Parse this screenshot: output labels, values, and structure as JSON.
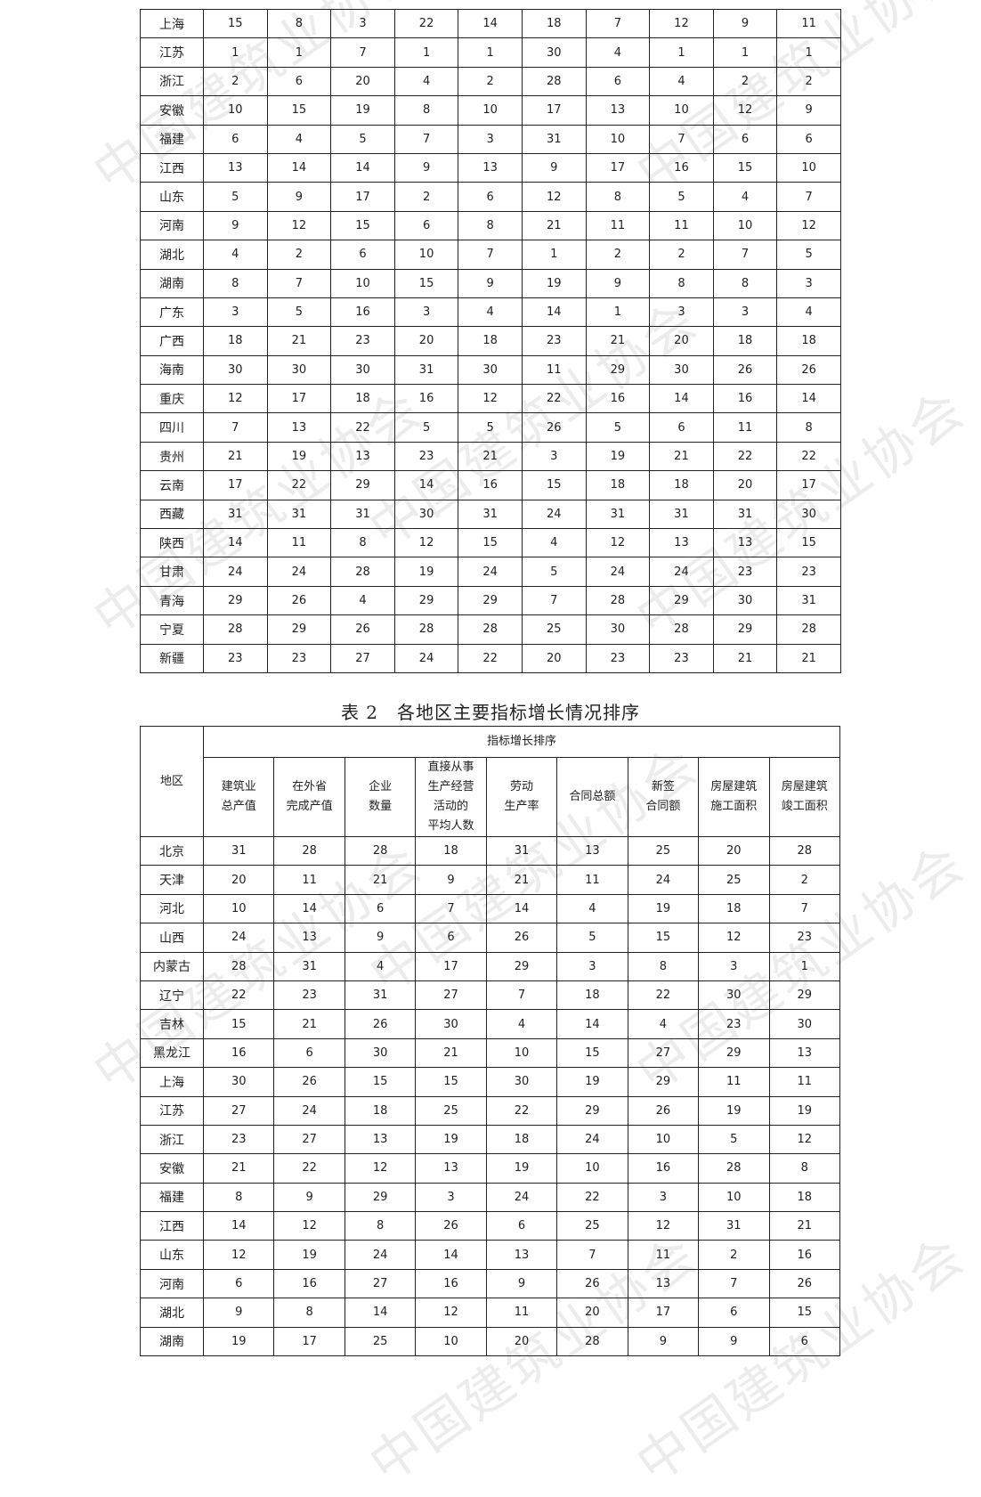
{
  "watermark": "中国建筑业协会",
  "table1": {
    "rows": [
      {
        "region": "上海",
        "values": [
          15,
          8,
          3,
          22,
          14,
          18,
          7,
          12,
          9,
          11
        ]
      },
      {
        "region": "江苏",
        "values": [
          1,
          1,
          7,
          1,
          1,
          30,
          4,
          1,
          1,
          1
        ]
      },
      {
        "region": "浙江",
        "values": [
          2,
          6,
          20,
          4,
          2,
          28,
          6,
          4,
          2,
          2
        ]
      },
      {
        "region": "安徽",
        "values": [
          10,
          15,
          19,
          8,
          10,
          17,
          13,
          10,
          12,
          9
        ]
      },
      {
        "region": "福建",
        "values": [
          6,
          4,
          5,
          7,
          3,
          31,
          10,
          7,
          6,
          6
        ]
      },
      {
        "region": "江西",
        "values": [
          13,
          14,
          14,
          9,
          13,
          9,
          17,
          16,
          15,
          10
        ]
      },
      {
        "region": "山东",
        "values": [
          5,
          9,
          17,
          2,
          6,
          12,
          8,
          5,
          4,
          7
        ]
      },
      {
        "region": "河南",
        "values": [
          9,
          12,
          15,
          6,
          8,
          21,
          11,
          11,
          10,
          12
        ]
      },
      {
        "region": "湖北",
        "values": [
          4,
          2,
          6,
          10,
          7,
          1,
          2,
          2,
          7,
          5
        ]
      },
      {
        "region": "湖南",
        "values": [
          8,
          7,
          10,
          15,
          9,
          19,
          9,
          8,
          8,
          3
        ]
      },
      {
        "region": "广东",
        "values": [
          3,
          5,
          16,
          3,
          4,
          14,
          1,
          3,
          3,
          4
        ]
      },
      {
        "region": "广西",
        "values": [
          18,
          21,
          23,
          20,
          18,
          23,
          21,
          20,
          18,
          18
        ]
      },
      {
        "region": "海南",
        "values": [
          30,
          30,
          30,
          31,
          30,
          11,
          29,
          30,
          26,
          26
        ]
      },
      {
        "region": "重庆",
        "values": [
          12,
          17,
          18,
          16,
          12,
          22,
          16,
          14,
          16,
          14
        ]
      },
      {
        "region": "四川",
        "values": [
          7,
          13,
          22,
          5,
          5,
          26,
          5,
          6,
          11,
          8
        ]
      },
      {
        "region": "贵州",
        "values": [
          21,
          19,
          13,
          23,
          21,
          3,
          19,
          21,
          22,
          22
        ]
      },
      {
        "region": "云南",
        "values": [
          17,
          22,
          29,
          14,
          16,
          15,
          18,
          18,
          20,
          17
        ]
      },
      {
        "region": "西藏",
        "values": [
          31,
          31,
          31,
          30,
          31,
          24,
          31,
          31,
          31,
          30
        ]
      },
      {
        "region": "陕西",
        "values": [
          14,
          11,
          8,
          12,
          15,
          4,
          12,
          13,
          13,
          15
        ]
      },
      {
        "region": "甘肃",
        "values": [
          24,
          24,
          28,
          19,
          24,
          5,
          24,
          24,
          23,
          23
        ]
      },
      {
        "region": "青海",
        "values": [
          29,
          26,
          4,
          29,
          29,
          7,
          28,
          29,
          30,
          31
        ]
      },
      {
        "region": "宁夏",
        "values": [
          28,
          29,
          26,
          28,
          28,
          25,
          30,
          28,
          29,
          28
        ]
      },
      {
        "region": "新疆",
        "values": [
          23,
          23,
          27,
          24,
          22,
          20,
          23,
          23,
          21,
          21
        ]
      }
    ]
  },
  "table2": {
    "title": "表 2　各地区主要指标增长情况排序",
    "region_header": "地区",
    "group_header": "指标增长排序",
    "columns": [
      "建筑业\n总产值",
      "在外省\n完成产值",
      "企业\n数量",
      "直接从事\n生产经营\n活动的\n平均人数",
      "劳动\n生产率",
      "合同总额",
      "新签\n合同额",
      "房屋建筑\n施工面积",
      "房屋建筑\n竣工面积"
    ],
    "rows": [
      {
        "region": "北京",
        "values": [
          31,
          28,
          28,
          18,
          31,
          13,
          25,
          20,
          28
        ]
      },
      {
        "region": "天津",
        "values": [
          20,
          11,
          21,
          9,
          21,
          11,
          24,
          25,
          2
        ]
      },
      {
        "region": "河北",
        "values": [
          10,
          14,
          6,
          7,
          14,
          4,
          19,
          18,
          7
        ]
      },
      {
        "region": "山西",
        "values": [
          24,
          13,
          9,
          6,
          26,
          5,
          15,
          12,
          23
        ]
      },
      {
        "region": "内蒙古",
        "values": [
          28,
          31,
          4,
          17,
          29,
          3,
          8,
          3,
          1
        ]
      },
      {
        "region": "辽宁",
        "values": [
          22,
          23,
          31,
          27,
          7,
          18,
          22,
          30,
          29
        ]
      },
      {
        "region": "吉林",
        "values": [
          15,
          21,
          26,
          30,
          4,
          14,
          4,
          23,
          30
        ]
      },
      {
        "region": "黑龙江",
        "values": [
          16,
          6,
          30,
          21,
          10,
          15,
          27,
          29,
          13
        ]
      },
      {
        "region": "上海",
        "values": [
          30,
          26,
          15,
          15,
          30,
          19,
          29,
          11,
          11
        ]
      },
      {
        "region": "江苏",
        "values": [
          27,
          24,
          18,
          25,
          22,
          29,
          26,
          19,
          19
        ]
      },
      {
        "region": "浙江",
        "values": [
          23,
          27,
          13,
          19,
          18,
          24,
          10,
          5,
          12
        ]
      },
      {
        "region": "安徽",
        "values": [
          21,
          22,
          12,
          13,
          19,
          10,
          16,
          28,
          8
        ]
      },
      {
        "region": "福建",
        "values": [
          8,
          9,
          29,
          3,
          24,
          22,
          3,
          10,
          18
        ]
      },
      {
        "region": "江西",
        "values": [
          14,
          12,
          8,
          26,
          6,
          25,
          12,
          31,
          21
        ]
      },
      {
        "region": "山东",
        "values": [
          12,
          19,
          24,
          14,
          13,
          7,
          11,
          2,
          16
        ]
      },
      {
        "region": "河南",
        "values": [
          6,
          16,
          27,
          16,
          9,
          26,
          13,
          7,
          26
        ]
      },
      {
        "region": "湖北",
        "values": [
          9,
          8,
          14,
          12,
          11,
          20,
          17,
          6,
          15
        ]
      },
      {
        "region": "湖南",
        "values": [
          19,
          17,
          25,
          10,
          20,
          28,
          9,
          9,
          6
        ]
      }
    ]
  }
}
